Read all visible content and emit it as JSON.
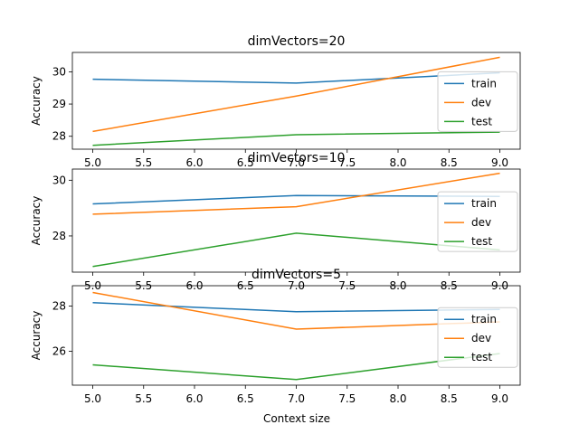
{
  "figure": {
    "xlabel": "Context size"
  },
  "chart_data": [
    {
      "type": "line",
      "title": "dimVectors=20",
      "ylabel": "Accuracy",
      "x": [
        5,
        7,
        9
      ],
      "xlim": [
        4.8,
        9.2
      ],
      "ylim": [
        27.6,
        30.6
      ],
      "xticks": [
        "5.0",
        "5.5",
        "6.0",
        "6.5",
        "7.0",
        "7.5",
        "8.0",
        "8.5",
        "9.0"
      ],
      "yticks": [
        28,
        29,
        30
      ],
      "series": [
        {
          "name": "train",
          "color": "#1f77b4",
          "values": [
            29.77,
            29.65,
            29.97
          ]
        },
        {
          "name": "dev",
          "color": "#ff7f0e",
          "values": [
            28.15,
            29.25,
            30.45
          ]
        },
        {
          "name": "test",
          "color": "#2ca02c",
          "values": [
            27.72,
            28.05,
            28.13
          ]
        }
      ],
      "legend": "right"
    },
    {
      "type": "line",
      "title": "dimVectors=10",
      "ylabel": "Accuracy",
      "x": [
        5,
        7,
        9
      ],
      "xlim": [
        4.8,
        9.2
      ],
      "ylim": [
        26.7,
        30.4
      ],
      "xticks": [
        "5.0",
        "5.5",
        "6.0",
        "6.5",
        "7.0",
        "7.5",
        "8.0",
        "8.5",
        "9.0"
      ],
      "yticks": [
        28,
        30
      ],
      "series": [
        {
          "name": "train",
          "color": "#1f77b4",
          "values": [
            29.15,
            29.45,
            29.42
          ]
        },
        {
          "name": "dev",
          "color": "#ff7f0e",
          "values": [
            28.78,
            29.05,
            30.25
          ]
        },
        {
          "name": "test",
          "color": "#2ca02c",
          "values": [
            26.9,
            28.1,
            27.5
          ]
        }
      ],
      "legend": "right"
    },
    {
      "type": "line",
      "title": "dimVectors=5",
      "ylabel": "Accuracy",
      "x": [
        5,
        7,
        9
      ],
      "xlim": [
        4.8,
        9.2
      ],
      "ylim": [
        24.5,
        28.9
      ],
      "xticks": [
        "5.0",
        "5.5",
        "6.0",
        "6.5",
        "7.0",
        "7.5",
        "8.0",
        "8.5",
        "9.0"
      ],
      "yticks": [
        26,
        28
      ],
      "series": [
        {
          "name": "train",
          "color": "#1f77b4",
          "values": [
            28.15,
            27.75,
            27.85
          ]
        },
        {
          "name": "dev",
          "color": "#ff7f0e",
          "values": [
            28.6,
            26.98,
            27.3
          ]
        },
        {
          "name": "test",
          "color": "#2ca02c",
          "values": [
            25.4,
            24.75,
            25.9
          ]
        }
      ],
      "legend": "right"
    }
  ]
}
